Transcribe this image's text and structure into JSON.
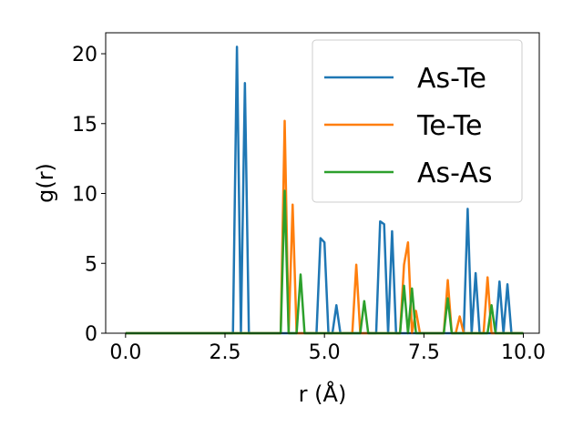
{
  "chart_data": {
    "type": "line",
    "xlabel": "r (Å)",
    "ylabel": "g(r)",
    "xlim": [
      -0.5,
      10.4
    ],
    "ylim": [
      0,
      21.5
    ],
    "xticks": [
      0.0,
      2.5,
      5.0,
      7.5,
      10.0
    ],
    "xtick_labels": [
      "0.0",
      "2.5",
      "5.0",
      "7.5",
      "10.0"
    ],
    "yticks": [
      0,
      5,
      10,
      15,
      20
    ],
    "ytick_labels": [
      "0",
      "5",
      "10",
      "15",
      "20"
    ],
    "legend_position": "top-right",
    "grid": false,
    "x_start": 0.0,
    "x_step": 0.1,
    "series": [
      {
        "name": "As-Te",
        "color": "#1f77b4",
        "values": [
          0,
          0,
          0,
          0,
          0,
          0,
          0,
          0,
          0,
          0,
          0,
          0,
          0,
          0,
          0,
          0,
          0,
          0,
          0,
          0,
          0,
          0,
          0,
          0,
          0,
          0,
          0,
          0,
          20.5,
          0,
          17.9,
          0,
          0,
          0,
          0,
          0,
          0,
          0,
          0,
          0,
          0,
          0,
          0,
          0,
          0,
          0,
          0,
          0,
          0,
          6.8,
          6.5,
          0,
          0,
          2.0,
          0,
          0,
          0,
          0,
          0,
          0,
          0,
          0,
          0,
          0,
          8.0,
          7.8,
          0,
          7.3,
          0,
          0,
          0,
          0,
          0,
          0,
          0,
          0,
          0,
          0,
          0,
          0,
          0,
          0,
          0,
          0,
          0,
          0,
          8.9,
          0,
          4.3,
          0,
          0,
          0,
          0,
          0,
          3.7,
          0,
          3.5,
          0,
          0,
          0,
          0
        ]
      },
      {
        "name": "Te-Te",
        "color": "#ff7f0e",
        "values": [
          0,
          0,
          0,
          0,
          0,
          0,
          0,
          0,
          0,
          0,
          0,
          0,
          0,
          0,
          0,
          0,
          0,
          0,
          0,
          0,
          0,
          0,
          0,
          0,
          0,
          0,
          0,
          0,
          0,
          0,
          0,
          0,
          0,
          0,
          0,
          0,
          0,
          0,
          0,
          0,
          15.2,
          0,
          9.2,
          0,
          0,
          0,
          0,
          0,
          0,
          0,
          0,
          0,
          0,
          0,
          0,
          0,
          0,
          0,
          4.9,
          0,
          0,
          0,
          0,
          0,
          0,
          0,
          0,
          0,
          0,
          0,
          4.9,
          6.5,
          0,
          1.6,
          0,
          0,
          0,
          0,
          0,
          0,
          0,
          3.8,
          0,
          0,
          1.2,
          0,
          0,
          0,
          0,
          0,
          0,
          4.0,
          0,
          0,
          0,
          0,
          0,
          0,
          0,
          0,
          0
        ]
      },
      {
        "name": "As-As",
        "color": "#2ca02c",
        "values": [
          0,
          0,
          0,
          0,
          0,
          0,
          0,
          0,
          0,
          0,
          0,
          0,
          0,
          0,
          0,
          0,
          0,
          0,
          0,
          0,
          0,
          0,
          0,
          0,
          0,
          0,
          0,
          0,
          0,
          0,
          0,
          0,
          0,
          0,
          0,
          0,
          0,
          0,
          0,
          0,
          10.2,
          0,
          0,
          0,
          4.2,
          0,
          0,
          0,
          0,
          0,
          0,
          0,
          0,
          0,
          0,
          0,
          0,
          0,
          0,
          0,
          2.3,
          0,
          0,
          0,
          0,
          0,
          0,
          0,
          0,
          0,
          3.4,
          0,
          3.2,
          0,
          0,
          0,
          0,
          0,
          0,
          0,
          0,
          2.5,
          0,
          0,
          0,
          0,
          0,
          0,
          0,
          0,
          0,
          0,
          2.0,
          0,
          0,
          0,
          0,
          0,
          0,
          0,
          0
        ]
      }
    ]
  }
}
